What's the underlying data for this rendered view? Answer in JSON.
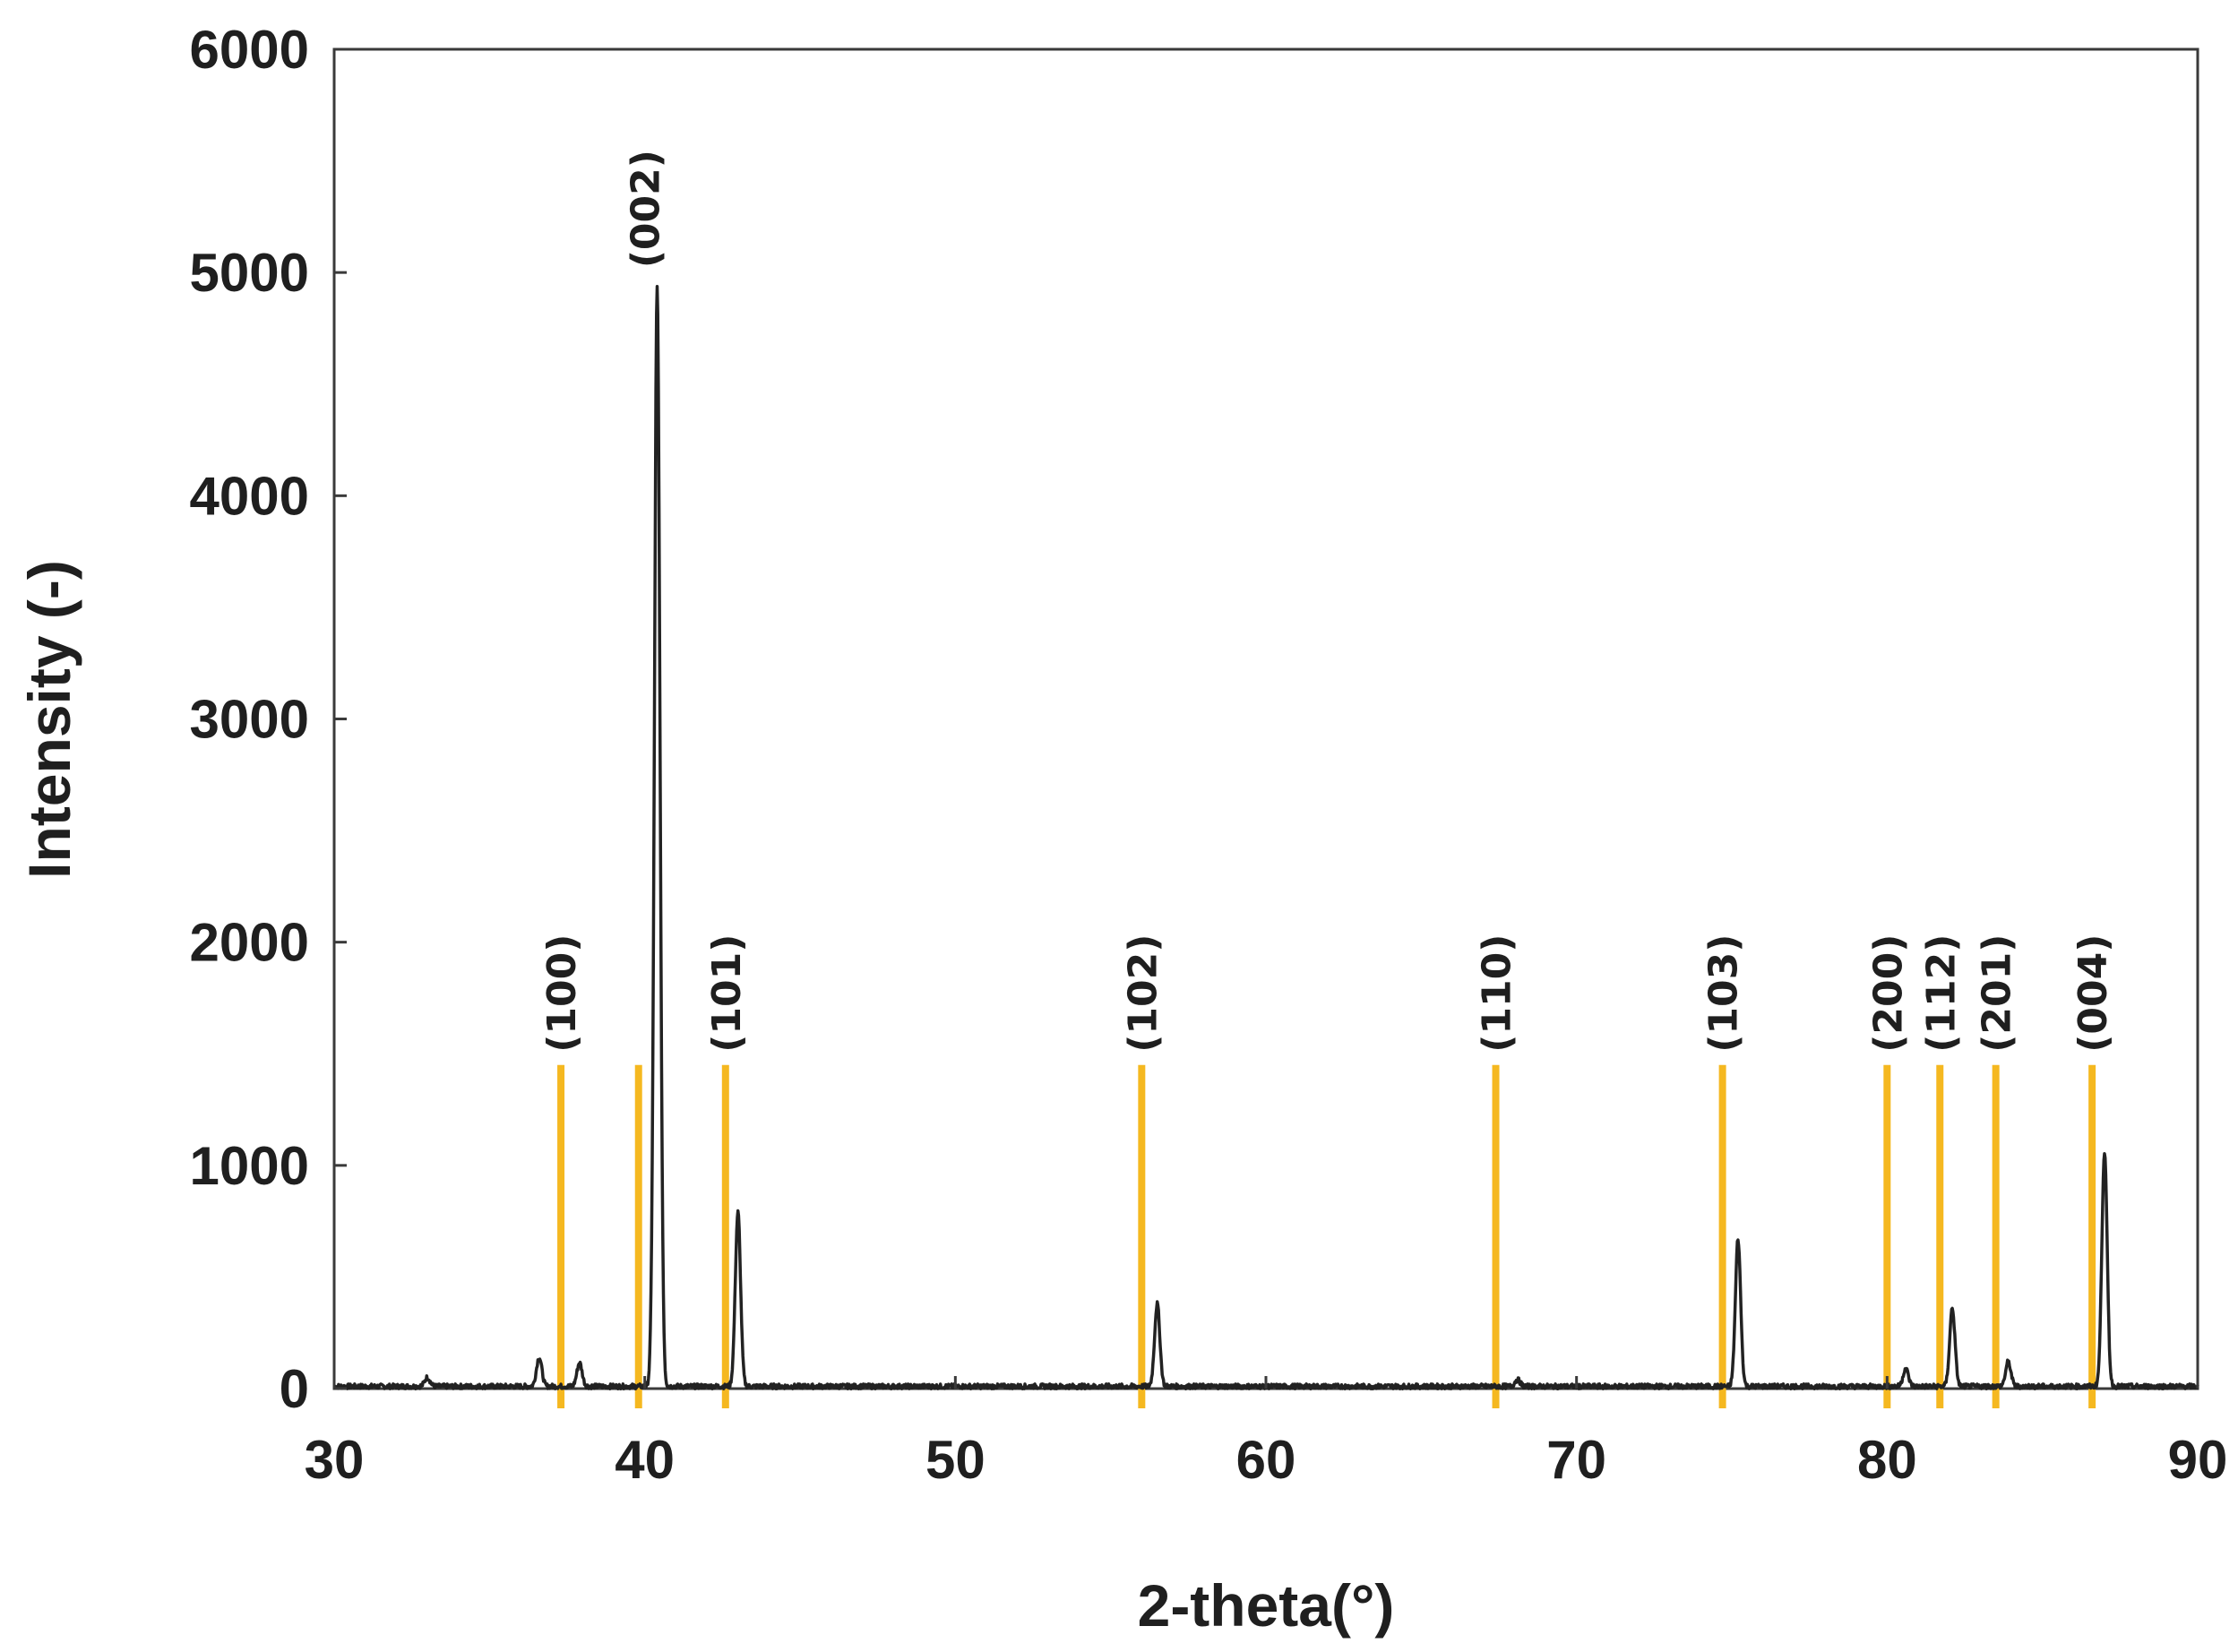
{
  "chart_data": {
    "type": "line",
    "xlabel": "2-theta(°)",
    "ylabel": "Intensity (-)",
    "xlim": [
      30,
      90
    ],
    "ylim": [
      0,
      6000
    ],
    "x_ticks": [
      30,
      40,
      50,
      60,
      70,
      80,
      90
    ],
    "y_ticks": [
      0,
      1000,
      2000,
      3000,
      4000,
      5000,
      6000
    ],
    "grid": false,
    "legend": "none",
    "series": [
      {
        "color": "#222222",
        "baseline": 10,
        "peaks": [
          {
            "x": 33.0,
            "y": 40
          },
          {
            "x": 36.6,
            "y": 130
          },
          {
            "x": 37.9,
            "y": 105
          },
          {
            "x": 40.4,
            "y": 4920
          },
          {
            "x": 43.0,
            "y": 780
          },
          {
            "x": 56.5,
            "y": 370
          },
          {
            "x": 68.1,
            "y": 30
          },
          {
            "x": 75.2,
            "y": 660
          },
          {
            "x": 80.6,
            "y": 80
          },
          {
            "x": 82.1,
            "y": 350
          },
          {
            "x": 83.9,
            "y": 110
          },
          {
            "x": 87.0,
            "y": 1050
          }
        ]
      }
    ],
    "reference_lines": {
      "color": "#f5b820",
      "top": 1450,
      "items": [
        {
          "x": 37.3,
          "label": "(100)"
        },
        {
          "x": 39.8,
          "label": "(002)"
        },
        {
          "x": 42.6,
          "label": "(101)"
        },
        {
          "x": 56.0,
          "label": "(102)"
        },
        {
          "x": 67.4,
          "label": "(110)"
        },
        {
          "x": 74.7,
          "label": "(103)"
        },
        {
          "x": 80.0,
          "label": "(200)"
        },
        {
          "x": 81.7,
          "label": "(112)"
        },
        {
          "x": 83.5,
          "label": "(201)"
        },
        {
          "x": 86.6,
          "label": "(004)"
        }
      ]
    }
  }
}
